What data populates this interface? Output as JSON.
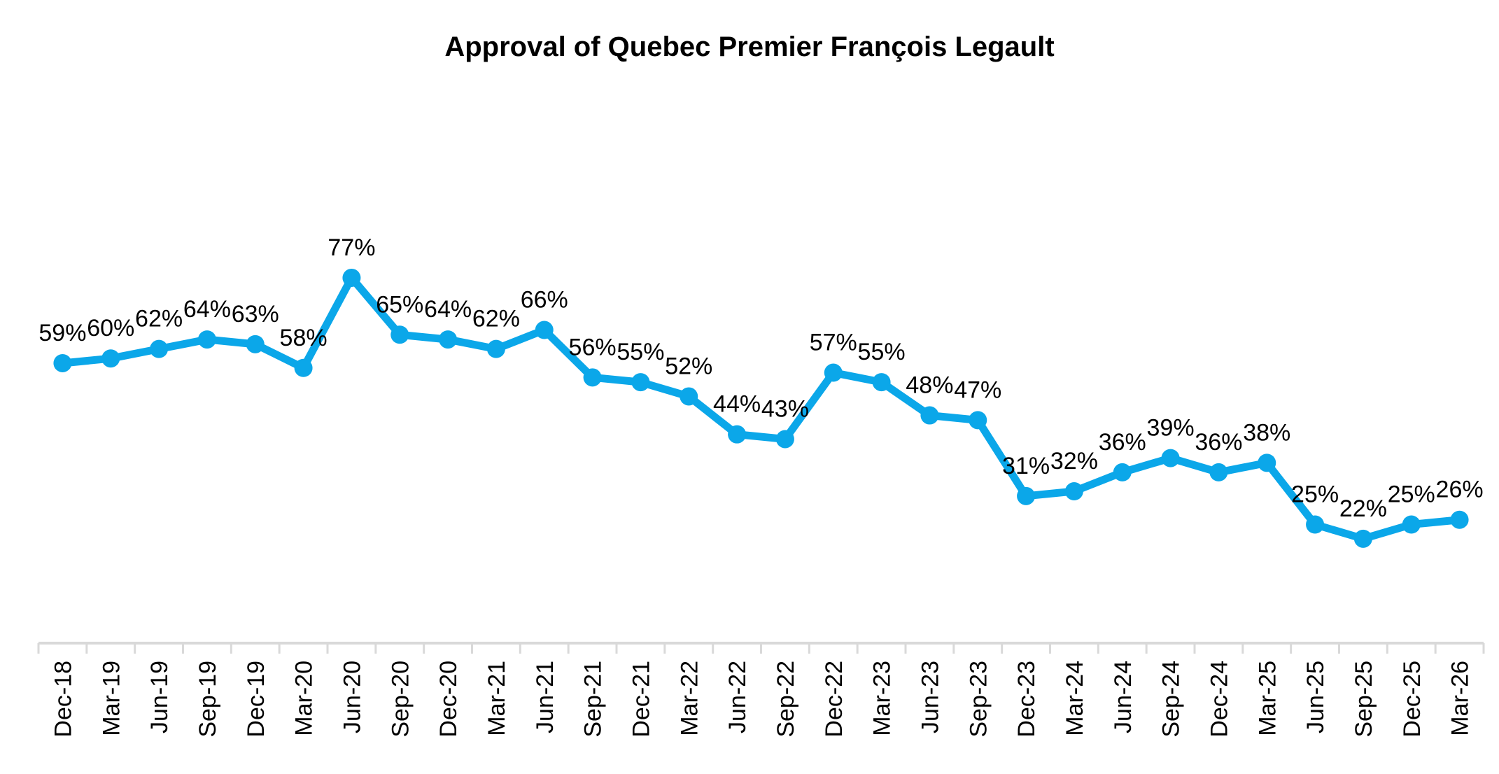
{
  "chart_data": {
    "type": "line",
    "title": "Approval of Quebec Premier François Legault",
    "categories": [
      "Dec-18",
      "Mar-19",
      "Jun-19",
      "Sep-19",
      "Dec-19",
      "Mar-20",
      "Jun-20",
      "Sep-20",
      "Dec-20",
      "Mar-21",
      "Jun-21",
      "Sep-21",
      "Dec-21",
      "Mar-22",
      "Jun-22",
      "Sep-22",
      "Dec-22",
      "Mar-23",
      "Jun-23",
      "Sep-23",
      "Dec-23",
      "Mar-24",
      "Jun-24",
      "Sep-24",
      "Dec-24",
      "Mar-25",
      "Jun-25",
      "Sep-25",
      "Dec-25",
      "Mar-26"
    ],
    "values": [
      59,
      60,
      62,
      64,
      63,
      58,
      77,
      65,
      64,
      62,
      66,
      56,
      55,
      52,
      44,
      43,
      57,
      55,
      48,
      47,
      31,
      32,
      36,
      39,
      36,
      38,
      25,
      22,
      25,
      26
    ],
    "data_labels": [
      "59%",
      "60%",
      "62%",
      "64%",
      "63%",
      "58%",
      "77%",
      "65%",
      "64%",
      "62%",
      "66%",
      "56%",
      "55%",
      "52%",
      "44%",
      "43%",
      "57%",
      "55%",
      "48%",
      "47%",
      "31%",
      "32%",
      "36%",
      "39%",
      "36%",
      "38%",
      "25%",
      "22%",
      "25%",
      "26%"
    ],
    "value_suffix": "%",
    "xlabel": "",
    "ylabel": "",
    "ylim": [
      0,
      100
    ],
    "grid": false,
    "legend": "none",
    "y_axis_visible": false,
    "colors": {
      "line": "#0BA7E9",
      "marker": "#0BA7E9",
      "axis": "#D9D9D9",
      "label_text": "#000000",
      "title_text": "#000000",
      "background": "#FFFFFF"
    }
  }
}
